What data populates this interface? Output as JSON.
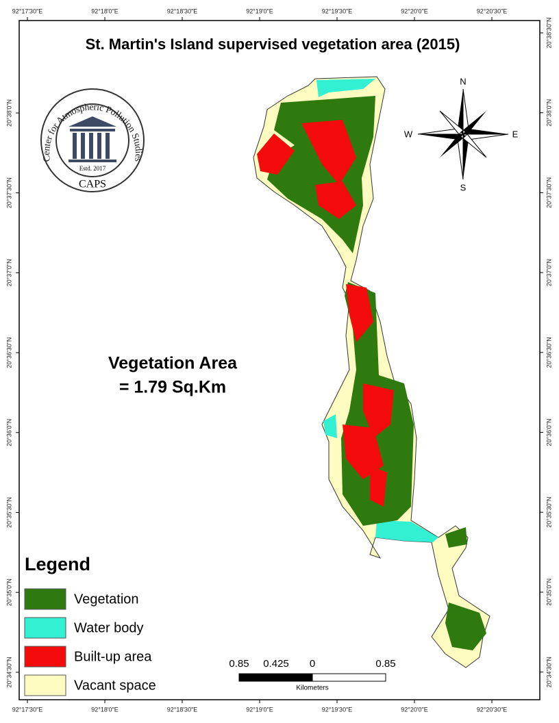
{
  "title": "St. Martin's Island supervised vegetation area (2015)",
  "coordinates": {
    "top": [
      "92°17'30\"E",
      "92°18'0\"E",
      "92°18'30\"E",
      "92°19'0\"E",
      "92°19'30\"E",
      "92°20'0\"E",
      "92°20'30\"E"
    ],
    "bottom": [
      "92°17'30\"E",
      "92°18'0\"E",
      "92°18'30\"E",
      "92°19'0\"E",
      "92°19'30\"E",
      "92°20'0\"E",
      "92°20'30\"E"
    ],
    "left": [
      "20°38'0\"N",
      "20°37'30\"N",
      "20°37'0\"N",
      "20°36'30\"N",
      "20°36'0\"N",
      "20°35'30\"N",
      "20°35'0\"N",
      "20°34'30\"N"
    ],
    "right": [
      "20°38'30\"N",
      "20°38'0\"N",
      "20°37'30\"N",
      "20°37'0\"N",
      "20°36'30\"N",
      "20°36'0\"N",
      "20°35'30\"N",
      "20°35'0\"N",
      "20°34'30\"N"
    ]
  },
  "logo": {
    "ring_text": "Center for Atmospheric Pollution Studies",
    "established": "Estd. 2017",
    "acronym": "CAPS"
  },
  "compass": {
    "north": "N",
    "south": "S",
    "east": "E",
    "west": "W"
  },
  "annotation": {
    "lines": [
      "Vegetation Area",
      "= 1.79 Sq.Km"
    ]
  },
  "legend": {
    "title": "Legend",
    "items": [
      {
        "name": "Vegetation",
        "color": "#2e7a0f"
      },
      {
        "name": "Water body",
        "color": "#33f0d2"
      },
      {
        "name": "Built-up area",
        "color": "#f40b0b"
      },
      {
        "name": "Vacant space",
        "color": "#fefcc0"
      }
    ]
  },
  "scale_bar": {
    "labels": [
      "0.85",
      "0.425",
      "0",
      "0.85"
    ],
    "unit": "Kilometers"
  }
}
